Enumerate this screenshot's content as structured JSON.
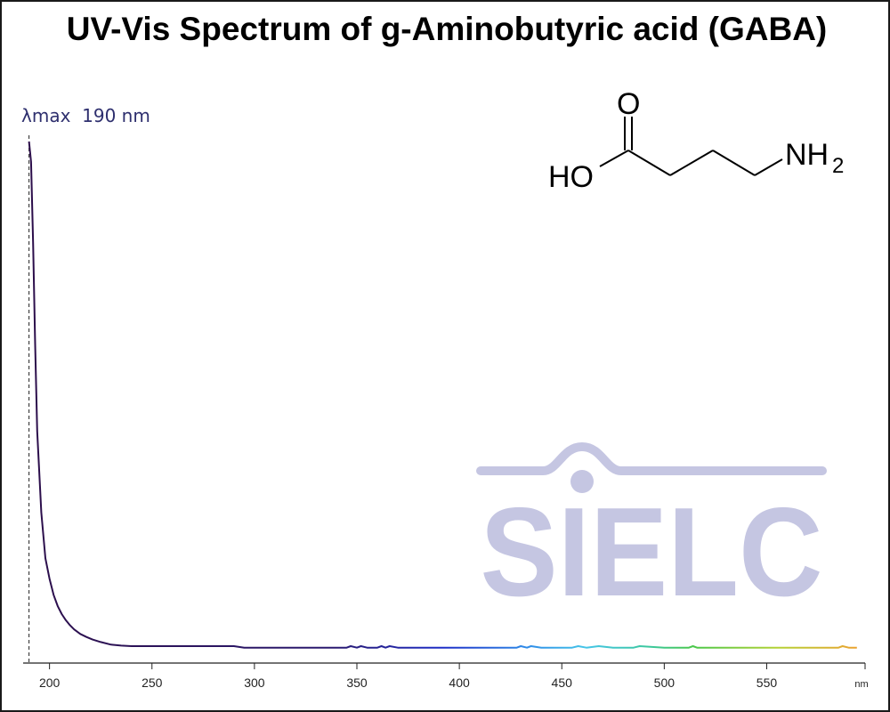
{
  "title": "UV-Vis Spectrum of g-Aminobutyric acid (GABA)",
  "annotation": {
    "lambda_max_label": "λmax  190 nm",
    "lambda_max_nm": 190
  },
  "molecule": {
    "o_label": "O",
    "ho_label": "HO",
    "nh_label": "NH",
    "subscript": "2"
  },
  "watermark": {
    "text": "SIELC",
    "color": "#c5c6e2"
  },
  "colors": {
    "annotation_text": "#2e2f6e",
    "axis": "#222222"
  },
  "chart_data": {
    "type": "line",
    "title": "UV-Vis Spectrum of g-Aminobutyric acid (GABA)",
    "xlabel": "nm",
    "ylabel": "",
    "xlim": [
      188,
      598
    ],
    "ylim": [
      0,
      1
    ],
    "x_ticks": [
      200,
      250,
      300,
      350,
      400,
      450,
      500,
      550
    ],
    "x_tick_labels": [
      "200",
      "250",
      "300",
      "350",
      "400",
      "450",
      "500",
      "550"
    ],
    "grid": false,
    "line_color": "wavelength-gradient (purple to orange)",
    "series": [
      {
        "x": [
          190,
          191,
          192,
          193,
          194,
          196,
          198,
          200,
          202,
          204,
          206,
          208,
          210,
          212,
          215,
          218,
          221,
          225,
          230,
          235,
          240,
          250,
          270,
          290,
          295,
          300,
          320,
          340,
          345,
          347,
          350,
          352,
          355,
          360,
          362,
          364,
          366,
          370,
          380,
          400,
          420,
          428,
          430,
          433,
          435,
          440,
          448,
          455,
          458,
          462,
          468,
          475,
          485,
          488,
          500,
          512,
          514,
          516,
          530,
          550,
          570,
          585,
          587,
          590,
          594
        ],
        "y": [
          1.0,
          0.96,
          0.8,
          0.6,
          0.43,
          0.27,
          0.18,
          0.14,
          0.108,
          0.086,
          0.07,
          0.058,
          0.048,
          0.04,
          0.031,
          0.025,
          0.02,
          0.015,
          0.01,
          0.008,
          0.007,
          0.007,
          0.007,
          0.007,
          0.004,
          0.004,
          0.004,
          0.004,
          0.004,
          0.007,
          0.004,
          0.007,
          0.004,
          0.004,
          0.007,
          0.004,
          0.007,
          0.004,
          0.004,
          0.004,
          0.004,
          0.004,
          0.007,
          0.004,
          0.007,
          0.004,
          0.004,
          0.004,
          0.007,
          0.004,
          0.007,
          0.004,
          0.004,
          0.007,
          0.004,
          0.004,
          0.007,
          0.004,
          0.004,
          0.004,
          0.004,
          0.004,
          0.007,
          0.004,
          0.004
        ]
      }
    ]
  }
}
